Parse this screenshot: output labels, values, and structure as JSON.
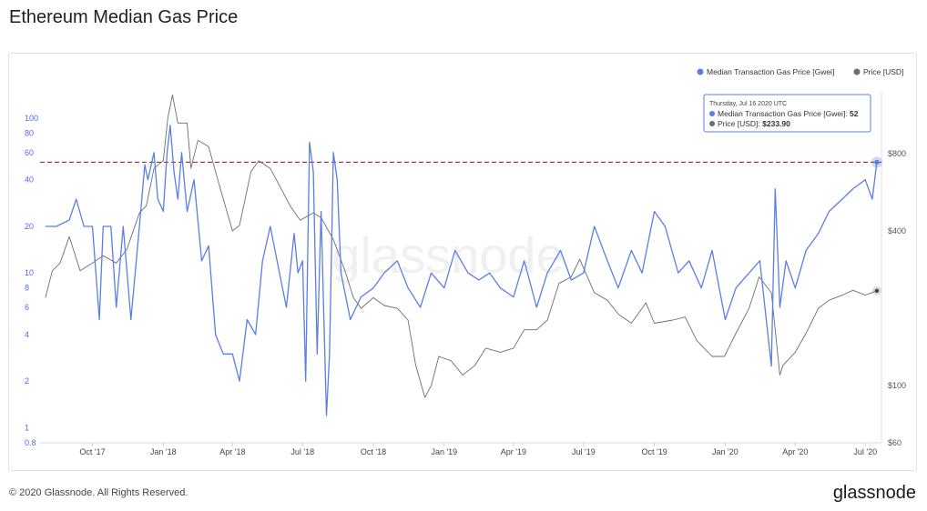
{
  "page": {
    "title": "Ethereum Median Gas Price",
    "footer": "© 2020 Glassnode. All Rights Reserved.",
    "brand": "glassnode",
    "watermark": "glassnode"
  },
  "chart_data": {
    "type": "line",
    "title": "Ethereum Median Gas Price",
    "legend": {
      "placement": "top-right",
      "entries": [
        {
          "name": "Median Transaction Gas Price [Gwei]",
          "color": "#5b7ee5"
        },
        {
          "name": "Price [USD]",
          "color": "#6d6d6d"
        }
      ]
    },
    "x_ticks": [
      "Oct '17",
      "Jan '18",
      "Apr '18",
      "Jul '18",
      "Oct '18",
      "Jan '19",
      "Apr '19",
      "Jul '19",
      "Oct '19",
      "Jan '20",
      "Apr '20",
      "Jul '20"
    ],
    "y_left": {
      "scale": "log",
      "range": [
        0.8,
        150
      ],
      "ticks": [
        "0.8",
        "1",
        "2",
        "4",
        "6",
        "8",
        "10",
        "20",
        "40",
        "60",
        "80",
        "100"
      ],
      "color": "#4a6fdc"
    },
    "y_right": {
      "scale": "log",
      "range": [
        60,
        1400
      ],
      "ticks": [
        "$60",
        "$100",
        "$400",
        "$800"
      ],
      "color": "#555555"
    },
    "reference_line": {
      "axis": "left",
      "value": 52,
      "color": "#8b1a1a",
      "style": "dashed"
    },
    "tooltip": {
      "date": "Thursday, Jul 16 2020 UTC",
      "rows": [
        {
          "label": "Median Transaction Gas Price [Gwei]:",
          "value": "52",
          "color": "#5b7ee5"
        },
        {
          "label": "Price [USD]:",
          "value": "$233.90",
          "color": "#6d6d6d"
        }
      ]
    },
    "grid": false,
    "series": [
      {
        "name": "Median Transaction Gas Price [Gwei]",
        "axis": "left",
        "color": "#5b7ee5",
        "x": [
          "2017-08-01",
          "2017-08-15",
          "2017-09-01",
          "2017-09-10",
          "2017-09-20",
          "2017-10-01",
          "2017-10-10",
          "2017-10-15",
          "2017-10-25",
          "2017-11-01",
          "2017-11-10",
          "2017-11-20",
          "2017-12-01",
          "2017-12-08",
          "2017-12-12",
          "2017-12-20",
          "2017-12-25",
          "2018-01-01",
          "2018-01-06",
          "2018-01-10",
          "2018-01-15",
          "2018-01-20",
          "2018-01-25",
          "2018-02-01",
          "2018-02-10",
          "2018-02-20",
          "2018-03-01",
          "2018-03-10",
          "2018-03-20",
          "2018-04-01",
          "2018-04-10",
          "2018-04-20",
          "2018-05-01",
          "2018-05-10",
          "2018-05-20",
          "2018-06-01",
          "2018-06-10",
          "2018-06-20",
          "2018-06-25",
          "2018-07-01",
          "2018-07-05",
          "2018-07-10",
          "2018-07-15",
          "2018-07-20",
          "2018-07-25",
          "2018-08-01",
          "2018-08-05",
          "2018-08-10",
          "2018-08-15",
          "2018-08-20",
          "2018-09-01",
          "2018-09-15",
          "2018-10-01",
          "2018-10-15",
          "2018-11-01",
          "2018-11-15",
          "2018-12-01",
          "2018-12-15",
          "2019-01-01",
          "2019-01-15",
          "2019-02-01",
          "2019-02-15",
          "2019-03-01",
          "2019-03-15",
          "2019-04-01",
          "2019-04-15",
          "2019-05-01",
          "2019-05-15",
          "2019-06-01",
          "2019-06-15",
          "2019-07-01",
          "2019-07-15",
          "2019-08-01",
          "2019-08-15",
          "2019-09-01",
          "2019-09-15",
          "2019-10-01",
          "2019-10-15",
          "2019-11-01",
          "2019-11-15",
          "2019-12-01",
          "2019-12-15",
          "2020-01-01",
          "2020-01-15",
          "2020-02-01",
          "2020-02-15",
          "2020-03-01",
          "2020-03-06",
          "2020-03-12",
          "2020-03-20",
          "2020-04-01",
          "2020-04-15",
          "2020-05-01",
          "2020-05-15",
          "2020-06-01",
          "2020-06-15",
          "2020-07-01",
          "2020-07-10",
          "2020-07-16"
        ],
        "values": [
          20,
          20,
          22,
          30,
          20,
          20,
          5,
          20,
          20,
          6,
          20,
          5,
          20,
          50,
          40,
          60,
          30,
          25,
          60,
          90,
          45,
          30,
          60,
          25,
          40,
          12,
          15,
          4,
          3,
          3,
          2,
          5,
          4,
          12,
          20,
          10,
          6,
          18,
          10,
          12,
          2,
          70,
          45,
          3,
          25,
          1.2,
          3,
          60,
          40,
          10,
          5,
          7,
          8,
          10,
          12,
          8,
          6,
          10,
          8,
          14,
          10,
          9,
          10,
          8,
          7,
          12,
          6,
          10,
          14,
          9,
          10,
          20,
          12,
          8,
          14,
          10,
          25,
          20,
          10,
          12,
          8,
          14,
          5,
          8,
          10,
          12,
          2.5,
          35,
          6,
          12,
          8,
          14,
          18,
          25,
          30,
          35,
          40,
          30,
          52
        ]
      },
      {
        "name": "Price [USD]",
        "axis": "right",
        "color": "#6d6d6d",
        "x": [
          "2017-08-01",
          "2017-08-10",
          "2017-08-20",
          "2017-09-01",
          "2017-09-15",
          "2017-10-01",
          "2017-10-15",
          "2017-11-01",
          "2017-11-15",
          "2017-12-01",
          "2017-12-10",
          "2017-12-20",
          "2018-01-01",
          "2018-01-07",
          "2018-01-13",
          "2018-01-20",
          "2018-02-01",
          "2018-02-06",
          "2018-02-15",
          "2018-03-01",
          "2018-03-15",
          "2018-04-01",
          "2018-04-10",
          "2018-04-25",
          "2018-05-05",
          "2018-05-20",
          "2018-06-01",
          "2018-06-15",
          "2018-06-28",
          "2018-07-15",
          "2018-07-25",
          "2018-08-10",
          "2018-08-25",
          "2018-09-05",
          "2018-09-15",
          "2018-10-01",
          "2018-10-15",
          "2018-11-01",
          "2018-11-15",
          "2018-11-25",
          "2018-12-07",
          "2018-12-15",
          "2018-12-25",
          "2019-01-10",
          "2019-01-25",
          "2019-02-10",
          "2019-02-24",
          "2019-03-15",
          "2019-04-01",
          "2019-04-15",
          "2019-05-01",
          "2019-05-15",
          "2019-05-30",
          "2019-06-15",
          "2019-06-26",
          "2019-07-15",
          "2019-08-01",
          "2019-08-15",
          "2019-09-01",
          "2019-09-20",
          "2019-10-01",
          "2019-10-25",
          "2019-11-10",
          "2019-11-25",
          "2019-12-15",
          "2019-12-31",
          "2020-01-15",
          "2020-02-01",
          "2020-02-14",
          "2020-03-01",
          "2020-03-12",
          "2020-03-16",
          "2020-04-01",
          "2020-04-15",
          "2020-05-01",
          "2020-05-15",
          "2020-06-01",
          "2020-06-15",
          "2020-07-01",
          "2020-07-16"
        ],
        "values": [
          220,
          280,
          300,
          380,
          280,
          300,
          320,
          300,
          340,
          470,
          500,
          700,
          750,
          1100,
          1350,
          1050,
          1050,
          700,
          900,
          850,
          600,
          400,
          420,
          680,
          750,
          700,
          600,
          500,
          440,
          470,
          450,
          370,
          280,
          220,
          200,
          220,
          205,
          200,
          180,
          120,
          90,
          100,
          130,
          125,
          110,
          120,
          140,
          135,
          140,
          165,
          165,
          180,
          250,
          265,
          310,
          230,
          215,
          190,
          175,
          210,
          175,
          180,
          185,
          150,
          130,
          130,
          160,
          200,
          265,
          230,
          110,
          120,
          135,
          160,
          200,
          215,
          225,
          235,
          225,
          234
        ]
      }
    ]
  }
}
